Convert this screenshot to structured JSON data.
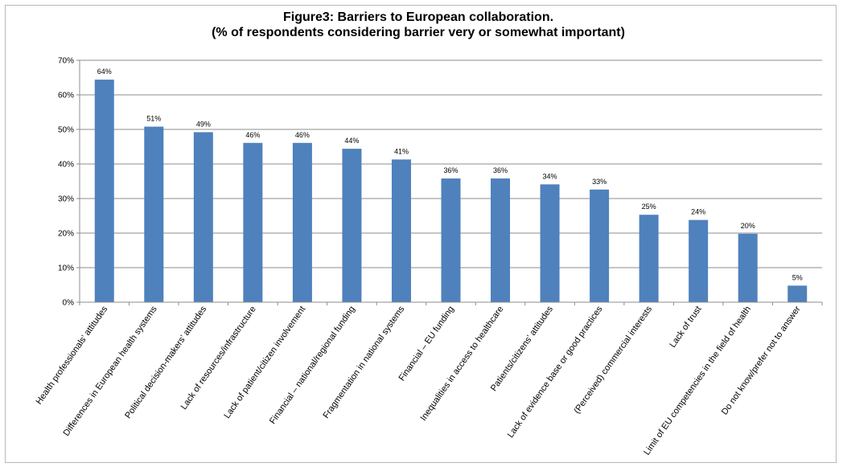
{
  "chart_data": {
    "type": "bar",
    "title": "Figure3: Barriers to European collaboration.",
    "subtitle": "(% of respondents considering barrier very or somewhat important)",
    "xlabel": "",
    "ylabel": "",
    "ylim": [
      0,
      70
    ],
    "yticks": [
      "0%",
      "10%",
      "20%",
      "30%",
      "40%",
      "50%",
      "60%",
      "70%"
    ],
    "grid": true,
    "legend": "none",
    "categories": [
      "Health professionals’ attitudes",
      "Differences in European health systems",
      "Political decision-makers’ attitudes",
      "Lack of resources/infrastructure",
      "Lack of patient/citizen involvement",
      "Financial – national/regional funding",
      "Fragmentation in national systems",
      "Financial – EU funding",
      "Inequalities in access to healthcare",
      "Patients/citizens’ attitudes",
      "Lack of evidence base or good practices",
      "(Perceived) commercial interests",
      "Lack of trust",
      "Limit of EU competencies in the field of health",
      "Do not know/prefer not to answer"
    ],
    "values": [
      64.4,
      50.8,
      49.2,
      46.1,
      46.1,
      44.4,
      41.3,
      35.8,
      35.8,
      34.1,
      32.6,
      25.3,
      23.8,
      19.8,
      4.8
    ],
    "data_labels": [
      "64%",
      "51%",
      "49%",
      "46%",
      "46%",
      "44%",
      "41%",
      "36%",
      "36%",
      "34%",
      "33%",
      "25%",
      "24%",
      "20%",
      "5%"
    ],
    "colors": {
      "bar": "#4f81bd",
      "grid": "#8c8c8c",
      "axis": "#8c8c8c",
      "text": "#000000"
    }
  }
}
